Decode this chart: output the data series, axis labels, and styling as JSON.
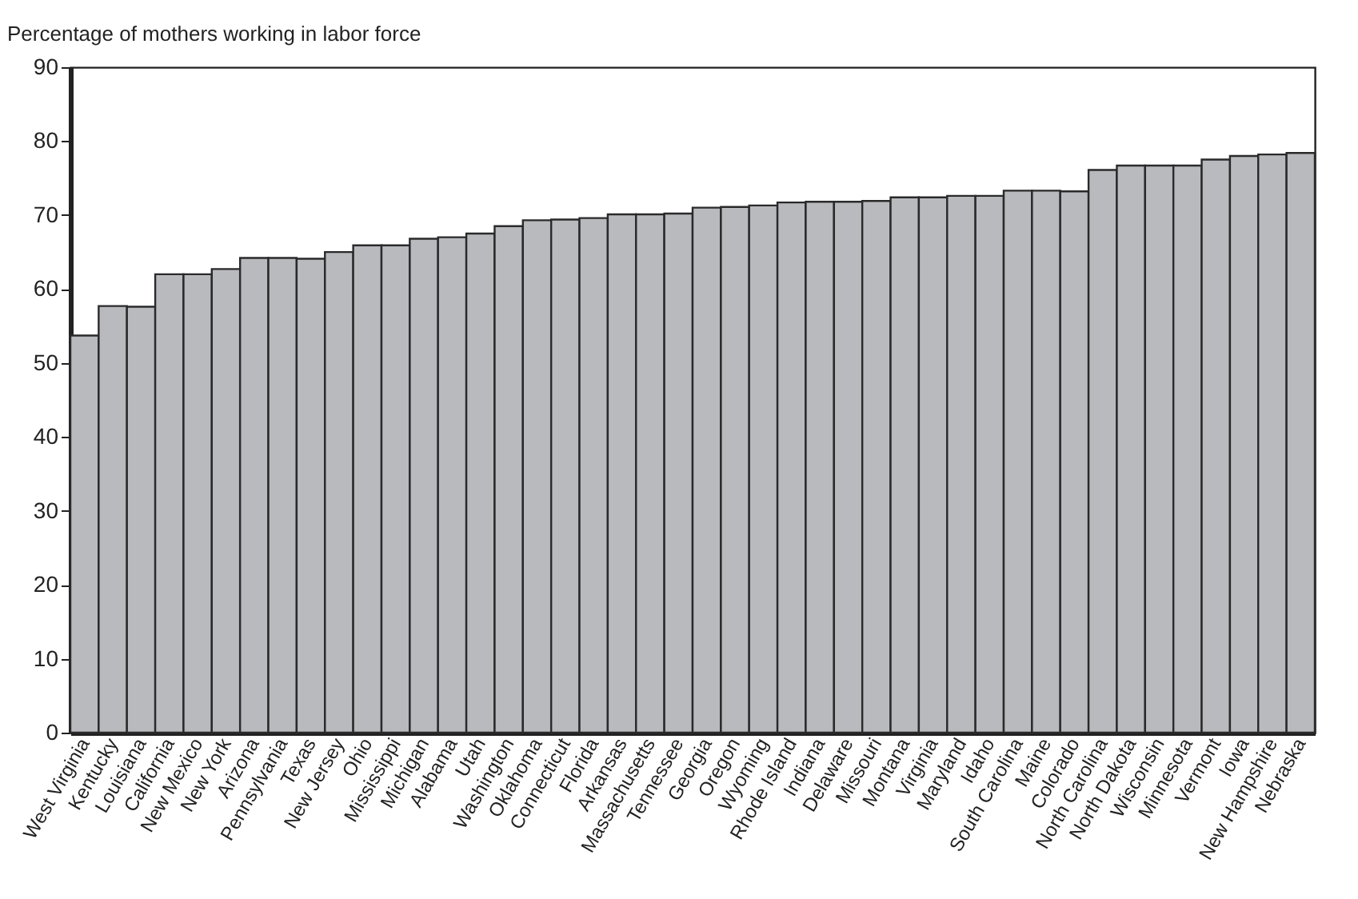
{
  "chart_data": {
    "type": "bar",
    "ylabel": "Percentage of mothers working in labor force",
    "categories": [
      "West Virginia",
      "Kentucky",
      "Louisiana",
      "California",
      "New Mexico",
      "New York",
      "Arizona",
      "Pennsylvania",
      "Texas",
      "New Jersey",
      "Ohio",
      "Mississippi",
      "Michigan",
      "Alabama",
      "Utah",
      "Washington",
      "Oklahoma",
      "Connecticut",
      "Florida",
      "Arkansas",
      "Massachusetts",
      "Tennessee",
      "Georgia",
      "Oregon",
      "Wyoming",
      "Rhode Island",
      "Indiana",
      "Delaware",
      "Missouri",
      "Montana",
      "Virginia",
      "Maryland",
      "Idaho",
      "South Carolina",
      "Maine",
      "Colorado",
      "North Carolina",
      "North Dakota",
      "Wisconsin",
      "Minnesota",
      "Vermont",
      "Iowa",
      "New Hampshire",
      "Nebraska"
    ],
    "values": [
      53.7,
      57.7,
      57.6,
      62,
      62,
      62.7,
      64.2,
      64.2,
      64.1,
      65,
      65.9,
      65.9,
      66.8,
      67,
      67.5,
      68.5,
      69.3,
      69.4,
      69.6,
      70.1,
      70.1,
      70.2,
      71,
      71.1,
      71.3,
      71.7,
      71.8,
      71.8,
      71.9,
      72.4,
      72.4,
      72.6,
      72.6,
      73.3,
      73.3,
      73.2,
      76.1,
      76.7,
      76.7,
      76.7,
      77.5,
      78,
      78.2,
      78.4
    ],
    "color": "#b9babe",
    "ylim": [
      0,
      90
    ],
    "yticks": [
      0,
      10,
      20,
      30,
      40,
      50,
      60,
      70,
      80,
      90
    ],
    "grid": false
  }
}
